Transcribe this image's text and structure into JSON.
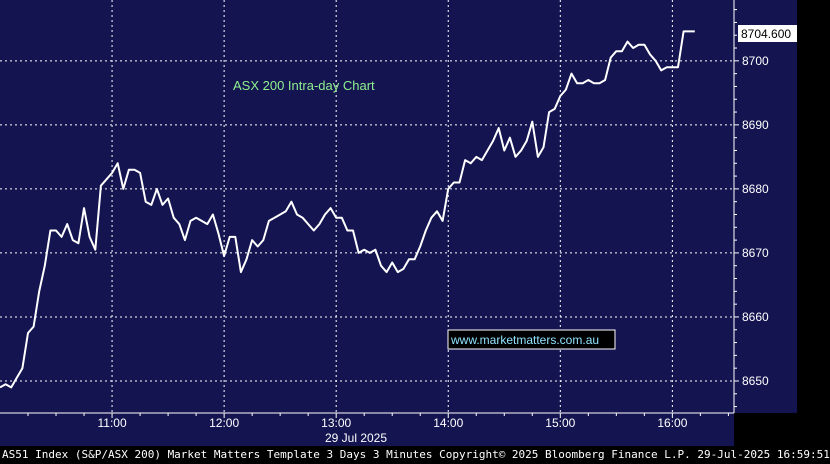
{
  "colors": {
    "plot_background": "#141450",
    "grid": "#ffffff",
    "line": "#ffffff",
    "title_text": "#8ff08f",
    "watermark_text": "#8fe3ff",
    "price_box_bg": "#ffffff",
    "price_box_text": "#000000",
    "page_background": "#000000"
  },
  "footer": {
    "text": "AS51 Index (S&P/ASX 200) Market Matters Template 3 Days 3 Minutes Copyright© 2025 Bloomberg Finance L.P. 29-Jul-2025 16:59:51"
  },
  "chart_data": {
    "type": "line",
    "title": "ASX 200 Intra-day Chart",
    "watermark": "www.marketmatters.com.au",
    "date_label": "29 Jul 2025",
    "last_price_label": "8704.600",
    "x_tick_labels": [
      "11:00",
      "12:00",
      "13:00",
      "14:00",
      "15:00",
      "16:00"
    ],
    "x_tick_hours": [
      11,
      12,
      13,
      14,
      15,
      16
    ],
    "y_tick_labels": [
      "8650",
      "8660",
      "8670",
      "8680",
      "8690",
      "8700"
    ],
    "y_ticks": [
      8650,
      8660,
      8670,
      8680,
      8690,
      8700
    ],
    "xlim": [
      10.0,
      16.55
    ],
    "ylim": [
      8645,
      8709.5
    ],
    "grid": true,
    "series": [
      {
        "x": [
          10.0,
          10.05,
          10.1,
          10.15,
          10.2,
          10.25,
          10.3,
          10.35,
          10.4,
          10.45,
          10.5,
          10.55,
          10.6,
          10.65,
          10.7,
          10.75,
          10.8,
          10.85,
          10.9,
          10.95,
          11.0,
          11.05,
          11.1,
          11.15,
          11.2,
          11.25,
          11.3,
          11.35,
          11.4,
          11.45,
          11.5,
          11.55,
          11.6,
          11.65,
          11.7,
          11.75,
          11.8,
          11.85,
          11.9,
          11.95,
          12.0,
          12.05,
          12.1,
          12.15,
          12.2,
          12.25,
          12.3,
          12.35,
          12.4,
          12.45,
          12.5,
          12.55,
          12.6,
          12.65,
          12.7,
          12.75,
          12.8,
          12.85,
          12.9,
          12.95,
          13.0,
          13.05,
          13.1,
          13.15,
          13.2,
          13.25,
          13.3,
          13.35,
          13.4,
          13.45,
          13.5,
          13.55,
          13.6,
          13.65,
          13.7,
          13.75,
          13.8,
          13.85,
          13.9,
          13.95,
          14.0,
          14.05,
          14.1,
          14.15,
          14.2,
          14.25,
          14.3,
          14.35,
          14.4,
          14.45,
          14.5,
          14.55,
          14.6,
          14.65,
          14.7,
          14.75,
          14.8,
          14.85,
          14.9,
          14.95,
          15.0,
          15.05,
          15.1,
          15.15,
          15.2,
          15.25,
          15.3,
          15.35,
          15.4,
          15.45,
          15.5,
          15.55,
          15.6,
          15.65,
          15.7,
          15.75,
          15.8,
          15.85,
          15.9,
          15.95,
          16.0,
          16.05,
          16.1,
          16.15,
          16.2
        ],
        "y": [
          8649.0,
          8649.5,
          8649.0,
          8650.5,
          8652.0,
          8657.5,
          8658.5,
          8664.0,
          8668.0,
          8673.5,
          8673.5,
          8672.5,
          8674.5,
          8672.0,
          8671.5,
          8677.0,
          8672.5,
          8670.5,
          8680.5,
          8681.5,
          8682.5,
          8684.0,
          8680.0,
          8683.0,
          8683.0,
          8682.5,
          8678.0,
          8677.5,
          8680.0,
          8677.5,
          8678.5,
          8675.5,
          8674.5,
          8672.0,
          8675.0,
          8675.5,
          8675.0,
          8674.5,
          8676.0,
          8673.0,
          8669.5,
          8672.5,
          8672.5,
          8667.0,
          8669.0,
          8672.0,
          8671.0,
          8672.0,
          8675.0,
          8675.5,
          8676.0,
          8676.5,
          8678.0,
          8676.0,
          8675.5,
          8674.5,
          8673.5,
          8674.5,
          8676.0,
          8677.0,
          8675.5,
          8675.5,
          8673.5,
          8673.5,
          8670.0,
          8670.5,
          8670.0,
          8670.5,
          8668.0,
          8667.0,
          8668.5,
          8667.0,
          8667.5,
          8669.0,
          8669.0,
          8671.0,
          8673.5,
          8675.5,
          8676.5,
          8675.0,
          8680.0,
          8681.0,
          8681.0,
          8684.5,
          8684.0,
          8685.0,
          8684.5,
          8686.0,
          8687.5,
          8689.5,
          8686.0,
          8688.0,
          8685.0,
          8686.0,
          8687.5,
          8690.5,
          8685.0,
          8686.5,
          8692.0,
          8692.5,
          8694.5,
          8695.5,
          8698.0,
          8696.5,
          8696.5,
          8697.0,
          8696.5,
          8696.5,
          8697.0,
          8700.5,
          8701.5,
          8701.5,
          8703.0,
          8702.0,
          8702.5,
          8702.5,
          8701.0,
          8700.0,
          8698.5,
          8699.0,
          8699.0,
          8699.0,
          8704.6,
          8704.6,
          8704.6
        ]
      }
    ]
  }
}
